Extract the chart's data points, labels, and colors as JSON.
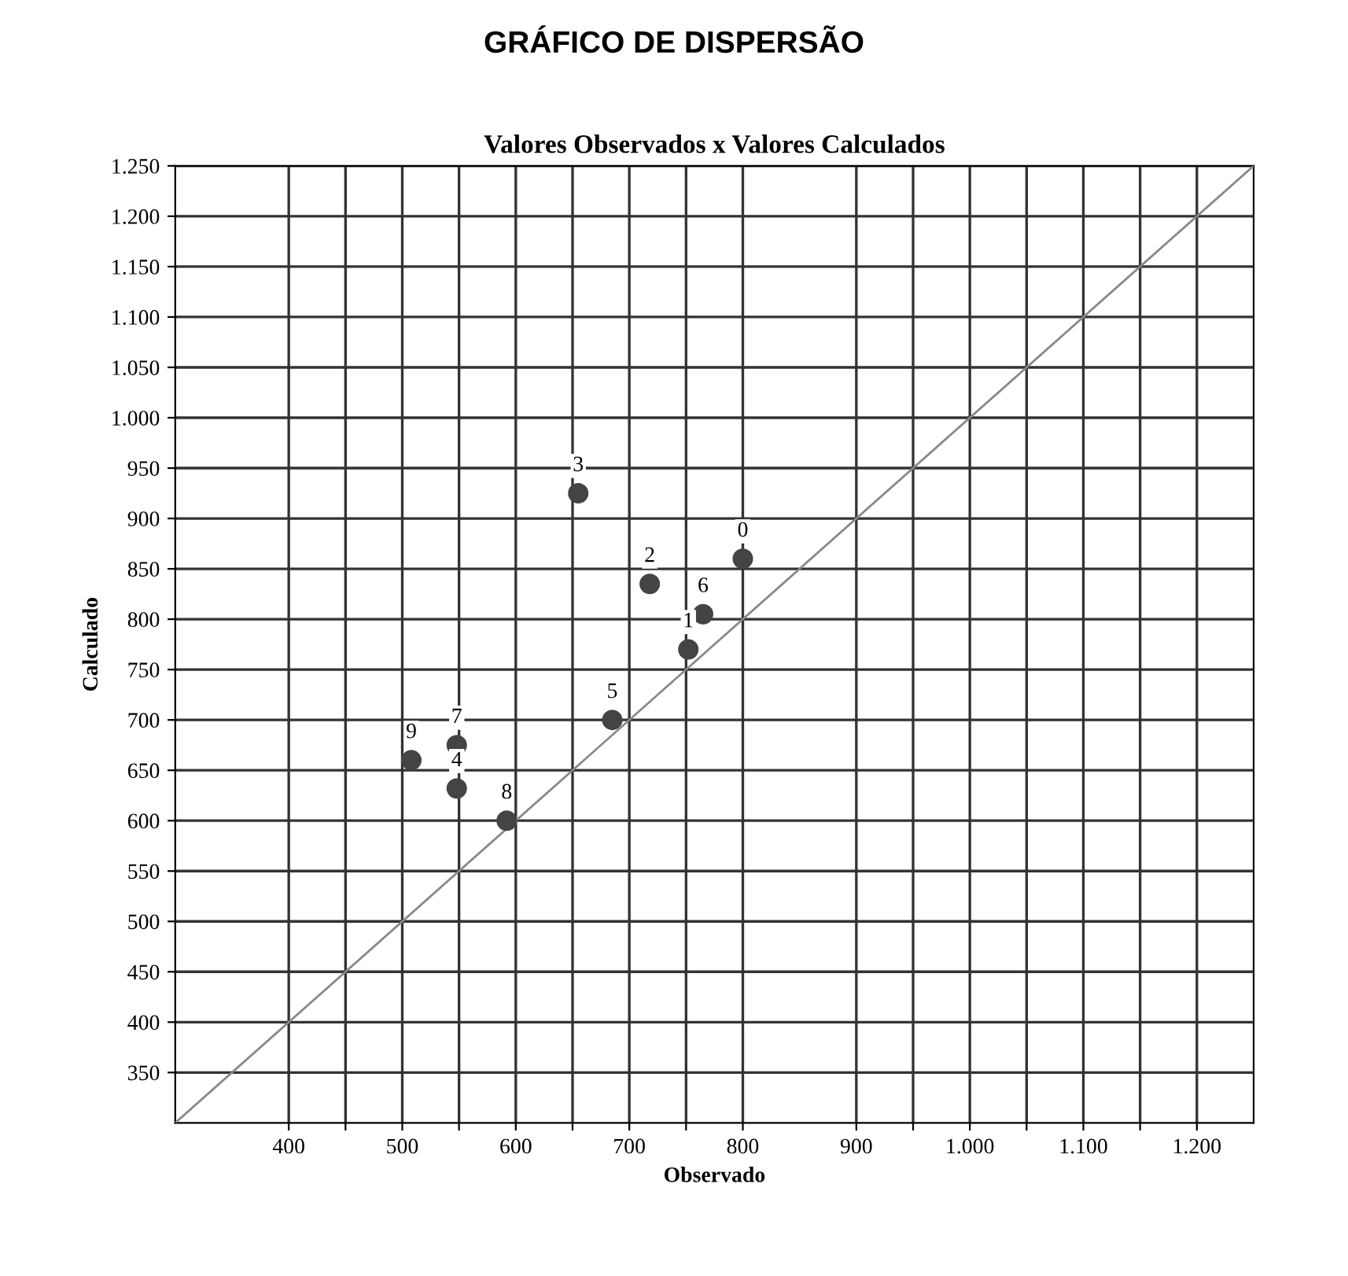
{
  "chart_data": {
    "type": "scatter",
    "title": "GRÁFICO DE DISPERSÃO",
    "subtitle": "Valores Observados x Valores Calculados",
    "xlabel": "Observado",
    "ylabel": "Calculado",
    "series": [
      {
        "color": "#444444",
        "marker": "circle",
        "x": [
          800,
          752,
          718,
          655,
          548,
          685,
          765,
          548,
          592,
          508
        ],
        "values": [
          860,
          770,
          835,
          925,
          632,
          700,
          805,
          675,
          600,
          660
        ]
      },
      {
        "type": "line",
        "color": "#888888",
        "line_style": "solid",
        "marker": "none",
        "x": [
          300,
          1250
        ],
        "values": [
          300,
          1250
        ]
      }
    ],
    "annotations": [
      {
        "text": "0",
        "x": 800,
        "y": 860
      },
      {
        "text": "1",
        "x": 752,
        "y": 770
      },
      {
        "text": "2",
        "x": 718,
        "y": 835
      },
      {
        "text": "3",
        "x": 655,
        "y": 925
      },
      {
        "text": "4",
        "x": 548,
        "y": 632
      },
      {
        "text": "5",
        "x": 685,
        "y": 700
      },
      {
        "text": "6",
        "x": 765,
        "y": 805
      },
      {
        "text": "7",
        "x": 548,
        "y": 675
      },
      {
        "text": "8",
        "x": 592,
        "y": 600
      },
      {
        "text": "9",
        "x": 508,
        "y": 660
      }
    ],
    "xlim": [
      300,
      1250
    ],
    "ylim": [
      300,
      1250
    ],
    "xticks": [
      400,
      {
        "value": 450,
        "label": null
      },
      500,
      {
        "value": 550,
        "label": null
      },
      600,
      {
        "value": 650,
        "label": null
      },
      700,
      {
        "value": 750,
        "label": null
      },
      800,
      900,
      {
        "value": 950,
        "label": null
      },
      {
        "value": 1000,
        "label": "1.000"
      },
      {
        "value": 1050,
        "label": null
      },
      {
        "value": 1100,
        "label": "1.100"
      },
      {
        "value": 1150,
        "label": null
      },
      {
        "value": 1200,
        "label": "1.200"
      }
    ],
    "yticks": [
      350,
      400,
      450,
      500,
      550,
      600,
      650,
      700,
      750,
      800,
      850,
      900,
      950,
      {
        "value": 1000,
        "label": "1.000"
      },
      {
        "value": 1050,
        "label": "1.050"
      },
      {
        "value": 1100,
        "label": "1.100"
      },
      {
        "value": 1150,
        "label": "1.150"
      },
      {
        "value": 1200,
        "label": "1.200"
      },
      {
        "value": 1250,
        "label": "1.250"
      }
    ],
    "grid": true,
    "legend": false
  }
}
